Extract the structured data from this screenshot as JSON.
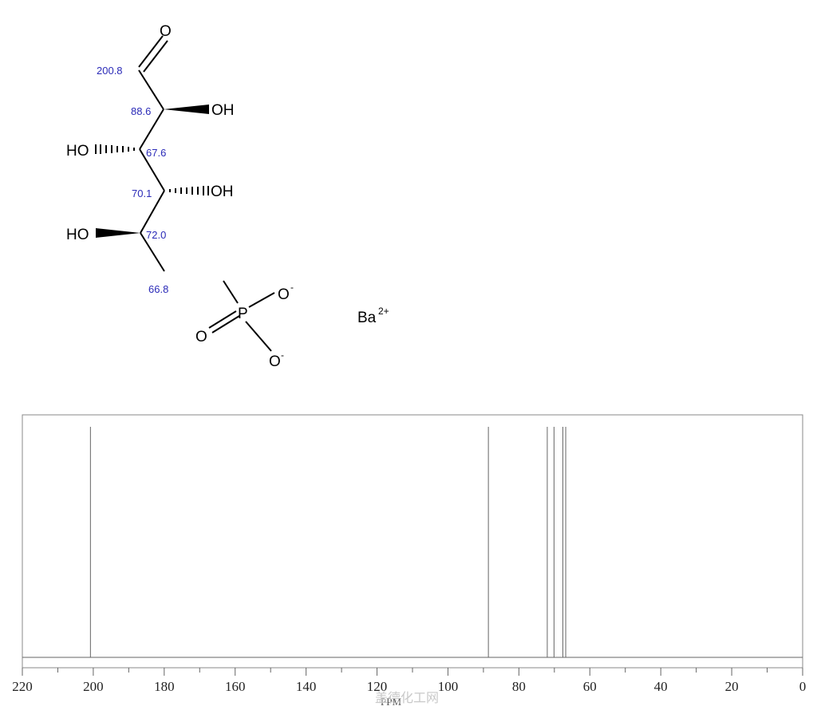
{
  "molecule": {
    "atoms": {
      "o_top": "O",
      "oh1": "OH",
      "ho2": "HO",
      "oh3": "OH",
      "ho4": "HO",
      "p": "P",
      "o_phos_eq": "O",
      "o_minus_1": "O",
      "o_minus_2": "O",
      "charge": "-",
      "cation": "Ba",
      "cation_charge": "2+"
    },
    "shift_labels": {
      "c1": "200.8",
      "c2": "88.6",
      "c3": "67.6",
      "c4": "70.1",
      "c5": "72.0",
      "c6": "66.8"
    }
  },
  "chart_data": {
    "type": "nmr-stick",
    "xlabel": "PPM",
    "x_range": [
      220,
      0
    ],
    "x_reversed": true,
    "ticks": [
      "220",
      "200",
      "180",
      "160",
      "140",
      "120",
      "100",
      "80",
      "60",
      "40",
      "20",
      "0"
    ],
    "tick_values": [
      220,
      200,
      180,
      160,
      140,
      120,
      100,
      80,
      60,
      40,
      20,
      0
    ],
    "peaks": [
      200.8,
      88.6,
      72.0,
      70.1,
      67.6,
      66.8
    ],
    "intensities": [
      1,
      1,
      1,
      1,
      1,
      1
    ],
    "grid": false
  },
  "watermark": "盖德化工网"
}
